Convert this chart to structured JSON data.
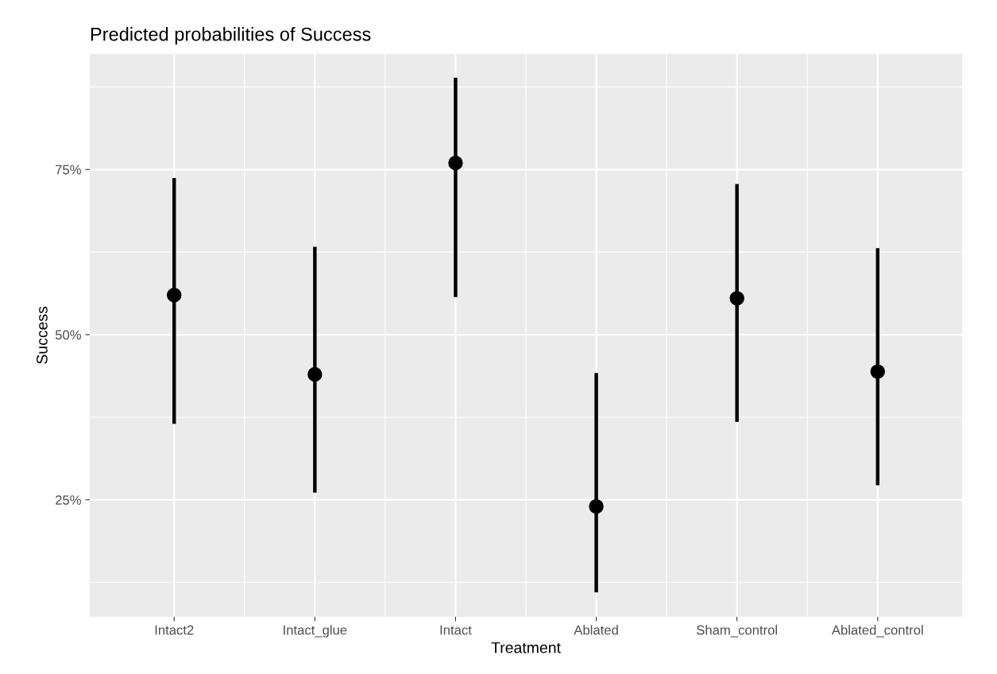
{
  "chart_data": {
    "type": "scatter",
    "title": "Predicted probabilities of Success",
    "xlabel": "Treatment",
    "ylabel": "Success",
    "categories": [
      "Intact2",
      "Intact_glue",
      "Intact",
      "Ablated",
      "Sham_control",
      "Ablated_control"
    ],
    "series": [
      {
        "color": "#000000",
        "values": [
          56.0,
          44.0,
          76.0,
          24.0,
          55.5,
          44.4
        ],
        "errors": [
          [
            36.5,
            73.7
          ],
          [
            26.1,
            63.3
          ],
          [
            55.7,
            88.9
          ],
          [
            11.0,
            44.2
          ],
          [
            36.8,
            72.8
          ],
          [
            27.2,
            63.1
          ]
        ]
      }
    ],
    "ylim": [
      7.3,
      92.5
    ],
    "yticks": [
      {
        "value": 25,
        "label": "25%"
      },
      {
        "value": 50,
        "label": "50%"
      },
      {
        "value": 75,
        "label": "75%"
      }
    ],
    "grid": true,
    "marker": "circle"
  }
}
